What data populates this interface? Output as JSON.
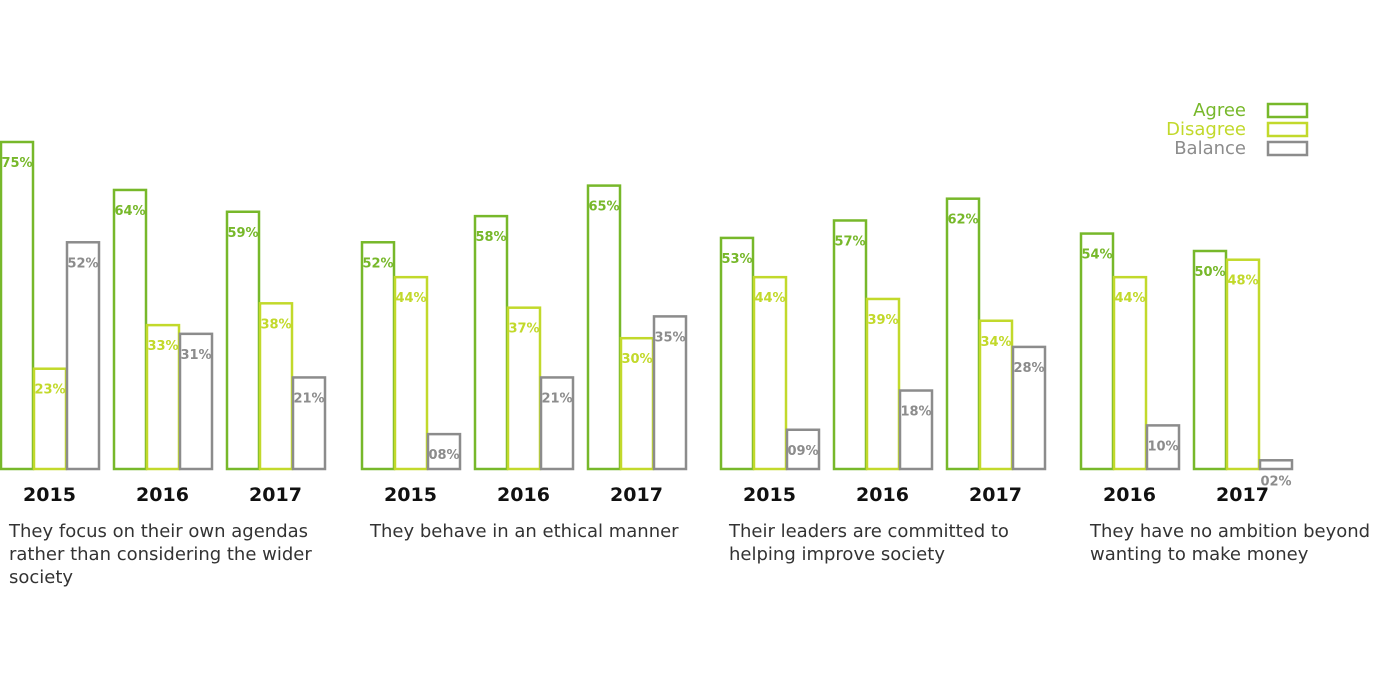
{
  "colors": {
    "agree": "#77b82a",
    "disagree": "#c2d92b",
    "balance": "#8c8c8c",
    "year_text": "#111111",
    "caption_text": "#333333"
  },
  "legend": [
    {
      "name": "Agree",
      "key": "agree"
    },
    {
      "name": "Disagree",
      "key": "disagree"
    },
    {
      "name": "Balance",
      "key": "balance"
    }
  ],
  "chart_data": [
    {
      "type": "bar",
      "title": "They focus on their own agendas rather than considering the wider society",
      "categories": [
        "2015",
        "2016",
        "2017"
      ],
      "series": [
        {
          "name": "Agree",
          "values": [
            75,
            64,
            59
          ],
          "labels": [
            "75%",
            "64%",
            "59%"
          ]
        },
        {
          "name": "Disagree",
          "values": [
            23,
            33,
            38
          ],
          "labels": [
            "23%",
            "33%",
            "38%"
          ]
        },
        {
          "name": "Balance",
          "values": [
            52,
            31,
            21
          ],
          "labels": [
            "52%",
            "31%",
            "21%"
          ]
        }
      ],
      "ylim": [
        0,
        100
      ]
    },
    {
      "type": "bar",
      "title": "They behave in an ethical manner",
      "categories": [
        "2015",
        "2016",
        "2017"
      ],
      "series": [
        {
          "name": "Agree",
          "values": [
            52,
            58,
            65
          ],
          "labels": [
            "52%",
            "58%",
            "65%"
          ]
        },
        {
          "name": "Disagree",
          "values": [
            44,
            37,
            30
          ],
          "labels": [
            "44%",
            "37%",
            "30%"
          ]
        },
        {
          "name": "Balance",
          "values": [
            8,
            21,
            35
          ],
          "labels": [
            "08%",
            "21%",
            "35%"
          ]
        }
      ],
      "ylim": [
        0,
        100
      ]
    },
    {
      "type": "bar",
      "title": "Their leaders are committed to helping improve society",
      "categories": [
        "2015",
        "2016",
        "2017"
      ],
      "series": [
        {
          "name": "Agree",
          "values": [
            53,
            57,
            62
          ],
          "labels": [
            "53%",
            "57%",
            "62%"
          ]
        },
        {
          "name": "Disagree",
          "values": [
            44,
            39,
            34
          ],
          "labels": [
            "44%",
            "39%",
            "34%"
          ]
        },
        {
          "name": "Balance",
          "values": [
            9,
            18,
            28
          ],
          "labels": [
            "09%",
            "18%",
            "28%"
          ]
        }
      ],
      "ylim": [
        0,
        100
      ]
    },
    {
      "type": "bar",
      "title": "They have no ambition beyond wanting to make money",
      "categories": [
        "2016",
        "2017"
      ],
      "series": [
        {
          "name": "Agree",
          "values": [
            54,
            50
          ],
          "labels": [
            "54%",
            "50%"
          ]
        },
        {
          "name": "Disagree",
          "values": [
            44,
            48
          ],
          "labels": [
            "44%",
            "48%"
          ]
        },
        {
          "name": "Balance",
          "values": [
            10,
            2
          ],
          "labels": [
            "10%",
            "02%"
          ]
        }
      ],
      "ylim": [
        0,
        100
      ]
    }
  ]
}
